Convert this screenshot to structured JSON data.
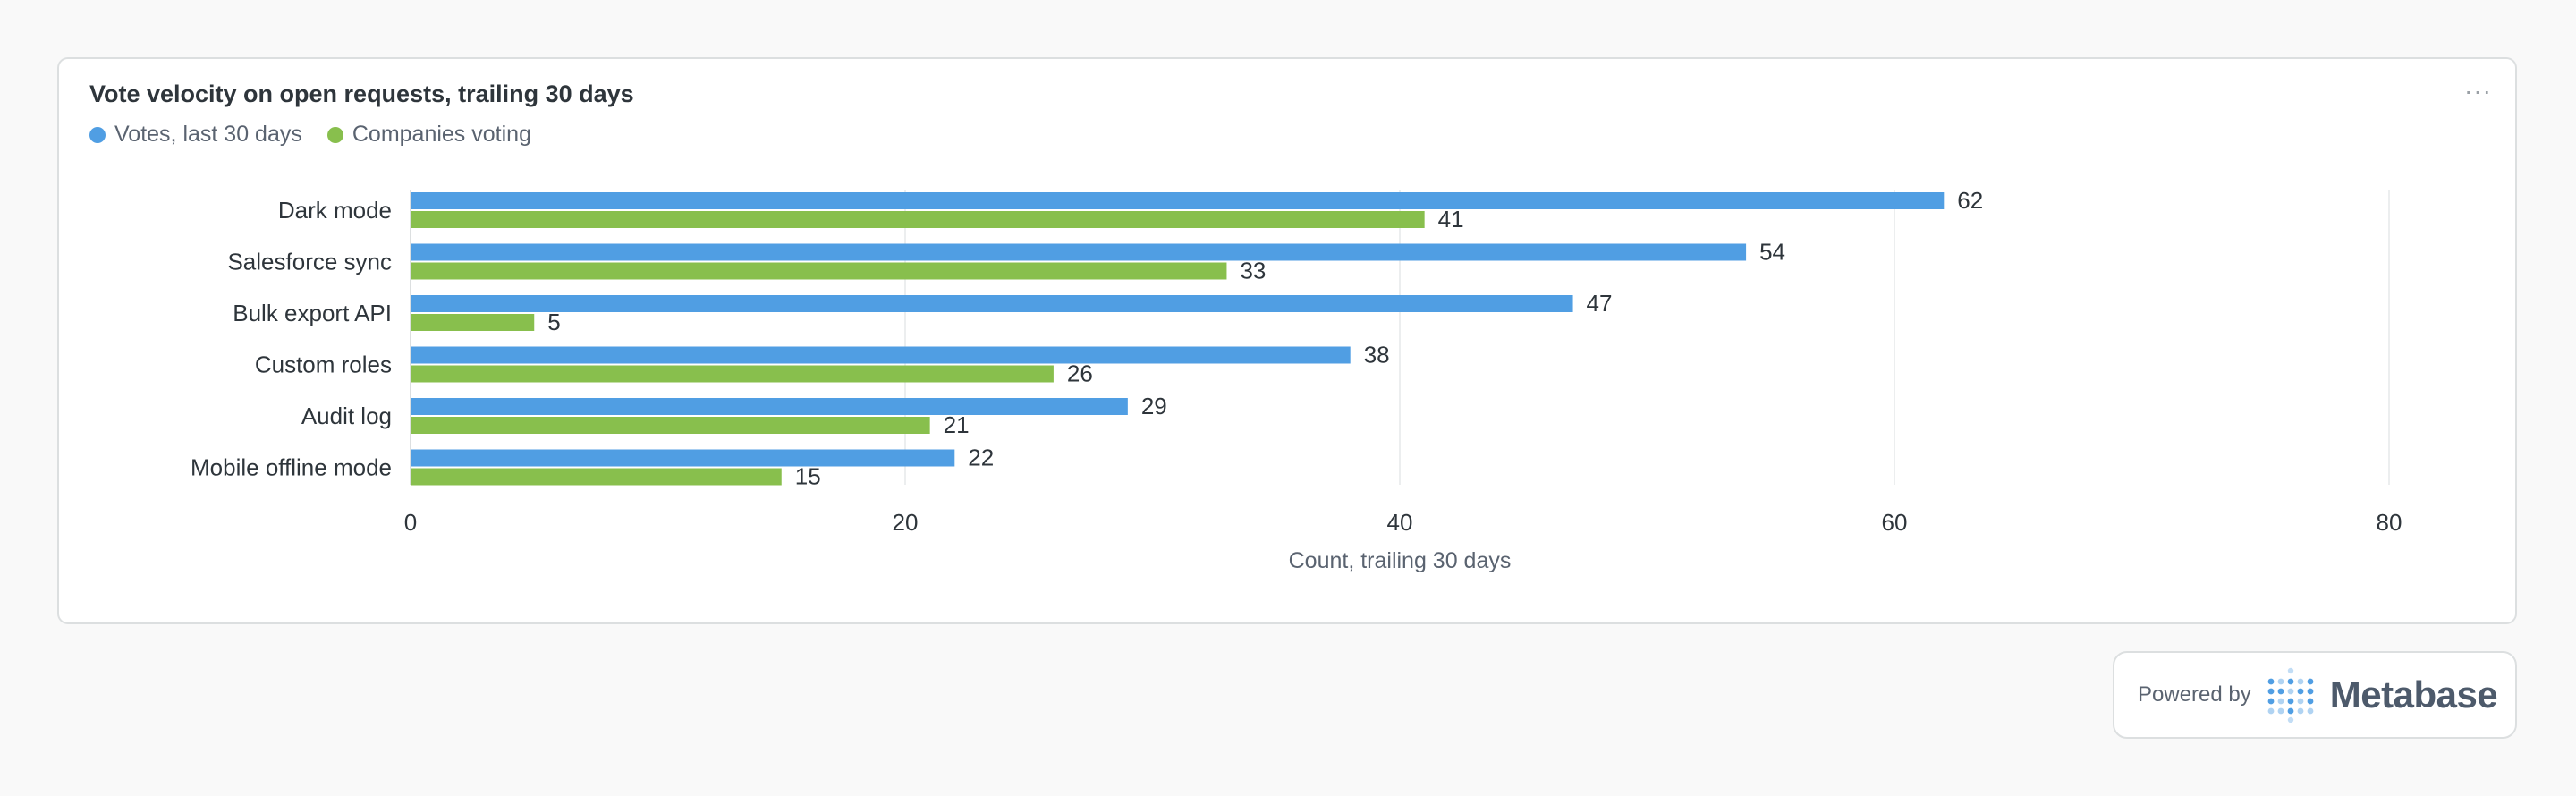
{
  "card": {
    "title": "Vote velocity on open requests, trailing 30 days",
    "menu_icon": "ellipsis-icon",
    "menu_glyph": "···"
  },
  "legend": [
    {
      "label": "Votes, last 30 days",
      "color": "#509ee3"
    },
    {
      "label": "Companies voting",
      "color": "#88bf4d"
    }
  ],
  "footer": {
    "powered_by": "Powered by",
    "brand": "Metabase",
    "logo_icon": "metabase-logo-icon"
  },
  "chart_data": {
    "type": "bar",
    "orientation": "horizontal",
    "categories": [
      "Dark mode",
      "Salesforce sync",
      "Bulk export API",
      "Custom roles",
      "Audit log",
      "Mobile offline mode"
    ],
    "series": [
      {
        "name": "Votes, last 30 days",
        "color": "#509ee3",
        "values": [
          62,
          54,
          47,
          38,
          29,
          22
        ]
      },
      {
        "name": "Companies voting",
        "color": "#88bf4d",
        "values": [
          41,
          33,
          5,
          26,
          21,
          15
        ]
      }
    ],
    "xlabel": "Count, trailing 30 days",
    "xlim": [
      0,
      80
    ],
    "xticks": [
      0,
      20,
      40,
      60,
      80
    ],
    "grid": true,
    "data_labels": true,
    "legend_position": "top-left"
  }
}
